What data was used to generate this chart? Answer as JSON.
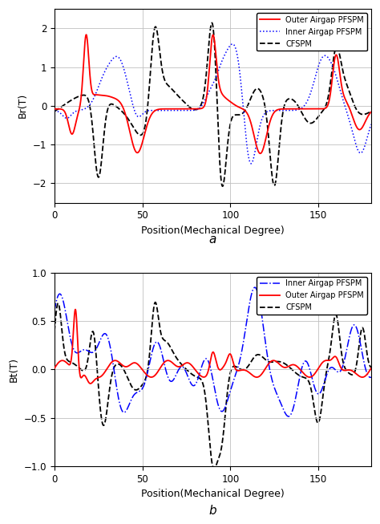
{
  "label_a": "a",
  "label_b": "b",
  "ylabel_a": "Br(T)",
  "ylabel_b": "Bt(T)",
  "xlabel": "Position(Mechanical Degree)",
  "xlim": [
    0,
    180
  ],
  "ylim_a": [
    -2.5,
    2.5
  ],
  "ylim_b": [
    -1.0,
    1.0
  ],
  "xticks": [
    0,
    50,
    100,
    150
  ],
  "yticks_a": [
    -2,
    -1,
    0,
    1,
    2
  ],
  "yticks_b": [
    -1,
    -0.5,
    0,
    0.5,
    1
  ],
  "legend_a": [
    "Outer Airgap PFSPM",
    "Inner Airgap PFSPM",
    "CFSPM"
  ],
  "legend_b": [
    "Inner Airgap PFSPM",
    "Outer Airgap PFSPM",
    "CFSPM"
  ],
  "colors": {
    "outer": "#FF0000",
    "inner": "#0000FF",
    "cfspm": "#000000"
  },
  "grid_color": "#C0C0C0",
  "background": "#FFFFFF"
}
